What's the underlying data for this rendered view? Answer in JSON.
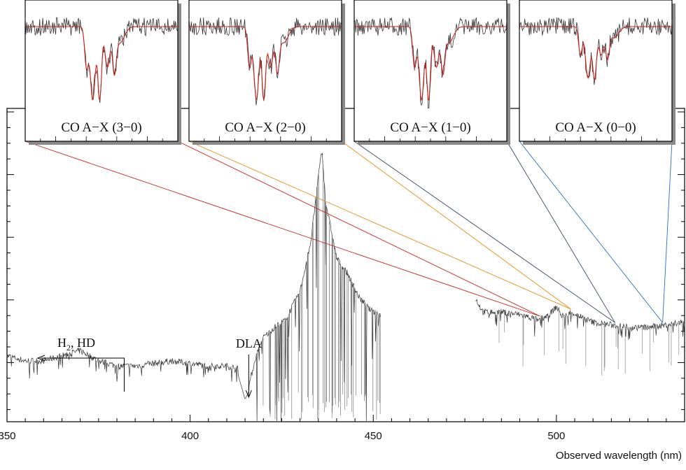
{
  "chart_data": {
    "type": "line",
    "xlabel": "Observed wavelength (nm)",
    "ylabel": "",
    "xlim": [
      350,
      535
    ],
    "x_ticks": [
      "350",
      "400",
      "450",
      "500"
    ],
    "x_tick_values": [
      350,
      400,
      450,
      500
    ],
    "grid": false,
    "spectrum_segments": [
      {
        "x": [
          350,
          355,
          360,
          365,
          370,
          375,
          380,
          385,
          390,
          395,
          400,
          405,
          410,
          413,
          415,
          416,
          418,
          420,
          423,
          426,
          430,
          433,
          435,
          436,
          437,
          440,
          443,
          446,
          449,
          452
        ],
        "y": [
          0.2,
          0.18,
          0.18,
          0.2,
          0.22,
          0.18,
          0.16,
          0.16,
          0.17,
          0.18,
          0.17,
          0.16,
          0.16,
          0.15,
          0.05,
          0.08,
          0.2,
          0.27,
          0.31,
          0.34,
          0.45,
          0.65,
          0.9,
          1.0,
          0.8,
          0.58,
          0.52,
          0.43,
          0.38,
          0.36
        ]
      },
      {
        "x": [
          478,
          480,
          485,
          490,
          495,
          498,
          500,
          502,
          504,
          507,
          510,
          515,
          520,
          525,
          530,
          535
        ],
        "y": [
          0.42,
          0.37,
          0.37,
          0.36,
          0.34,
          0.36,
          0.39,
          0.35,
          0.37,
          0.35,
          0.33,
          0.32,
          0.31,
          0.31,
          0.32,
          0.33
        ]
      }
    ],
    "annotations": [
      {
        "text": "DLA",
        "x": 416
      },
      {
        "text_main": "H",
        "text_sub": "2",
        "text_rest": ", HD",
        "x": 382
      }
    ],
    "insets": [
      {
        "label": "CO A−X (3−0)",
        "line_color": "#c8231e",
        "target_x": 495.5
      },
      {
        "label": "CO A−X (2−0)",
        "line_color": "#e58e1a",
        "target_x": 504
      },
      {
        "label": "CO A−X (1−0)",
        "line_color": "#3a4a63",
        "target_x": 516
      },
      {
        "label": "CO A−X (0−0)",
        "line_color": "#2f6fc0",
        "target_x": 529
      }
    ],
    "colors": {
      "model": "#c8231e",
      "data": "#333333",
      "frame": "#000000"
    }
  }
}
